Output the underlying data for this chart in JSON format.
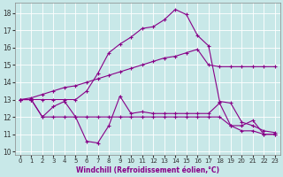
{
  "xlabel": "Windchill (Refroidissement éolien,°C)",
  "background_color": "#c8e8e8",
  "line_color": "#880088",
  "xlim": [
    -0.5,
    23.5
  ],
  "ylim": [
    9.8,
    18.6
  ],
  "yticks": [
    10,
    11,
    12,
    13,
    14,
    15,
    16,
    17,
    18
  ],
  "xticks": [
    0,
    1,
    2,
    3,
    4,
    5,
    6,
    7,
    8,
    9,
    10,
    11,
    12,
    13,
    14,
    15,
    16,
    17,
    18,
    19,
    20,
    21,
    22,
    23
  ],
  "curve1_x": [
    0,
    1,
    2,
    3,
    4,
    5,
    6,
    7,
    8,
    9,
    10,
    11,
    12,
    13,
    14,
    15,
    16,
    17,
    18,
    19,
    20,
    21,
    22,
    23
  ],
  "curve1_y": [
    13.0,
    13.0,
    12.0,
    12.6,
    12.9,
    12.0,
    10.6,
    10.5,
    11.5,
    13.2,
    12.2,
    12.3,
    12.2,
    12.2,
    12.2,
    12.2,
    12.2,
    12.2,
    12.8,
    11.5,
    11.5,
    11.8,
    11.0,
    11.0
  ],
  "curve2_x": [
    0,
    1,
    2,
    3,
    4,
    5,
    6,
    7,
    8,
    9,
    10,
    11,
    12,
    13,
    14,
    15,
    16,
    17,
    18,
    19,
    20,
    21,
    22,
    23
  ],
  "curve2_y": [
    13.0,
    13.0,
    12.0,
    12.0,
    12.0,
    12.0,
    12.0,
    12.0,
    12.0,
    12.0,
    12.0,
    12.0,
    12.0,
    12.0,
    12.0,
    12.0,
    12.0,
    12.0,
    12.0,
    11.5,
    11.2,
    11.2,
    11.0,
    11.0
  ],
  "curve3_x": [
    0,
    1,
    2,
    3,
    4,
    5,
    6,
    7,
    8,
    9,
    10,
    11,
    12,
    13,
    14,
    15,
    16,
    17,
    18,
    19,
    20,
    21,
    22,
    23
  ],
  "curve3_y": [
    13.0,
    13.1,
    13.3,
    13.5,
    13.7,
    13.8,
    14.0,
    14.2,
    14.4,
    14.6,
    14.8,
    15.0,
    15.2,
    15.4,
    15.5,
    15.7,
    15.9,
    15.0,
    14.9,
    14.9,
    14.9,
    14.9,
    14.9,
    14.9
  ],
  "curve4_x": [
    0,
    1,
    2,
    3,
    4,
    5,
    6,
    7,
    8,
    9,
    10,
    11,
    12,
    13,
    14,
    15,
    16,
    17,
    18,
    19,
    20,
    21,
    22,
    23
  ],
  "curve4_y": [
    13.0,
    13.0,
    13.0,
    13.0,
    13.0,
    13.0,
    13.5,
    14.5,
    15.7,
    16.2,
    16.6,
    17.1,
    17.2,
    17.6,
    18.2,
    17.9,
    16.7,
    16.1,
    12.9,
    12.8,
    11.7,
    11.5,
    11.2,
    11.1
  ]
}
